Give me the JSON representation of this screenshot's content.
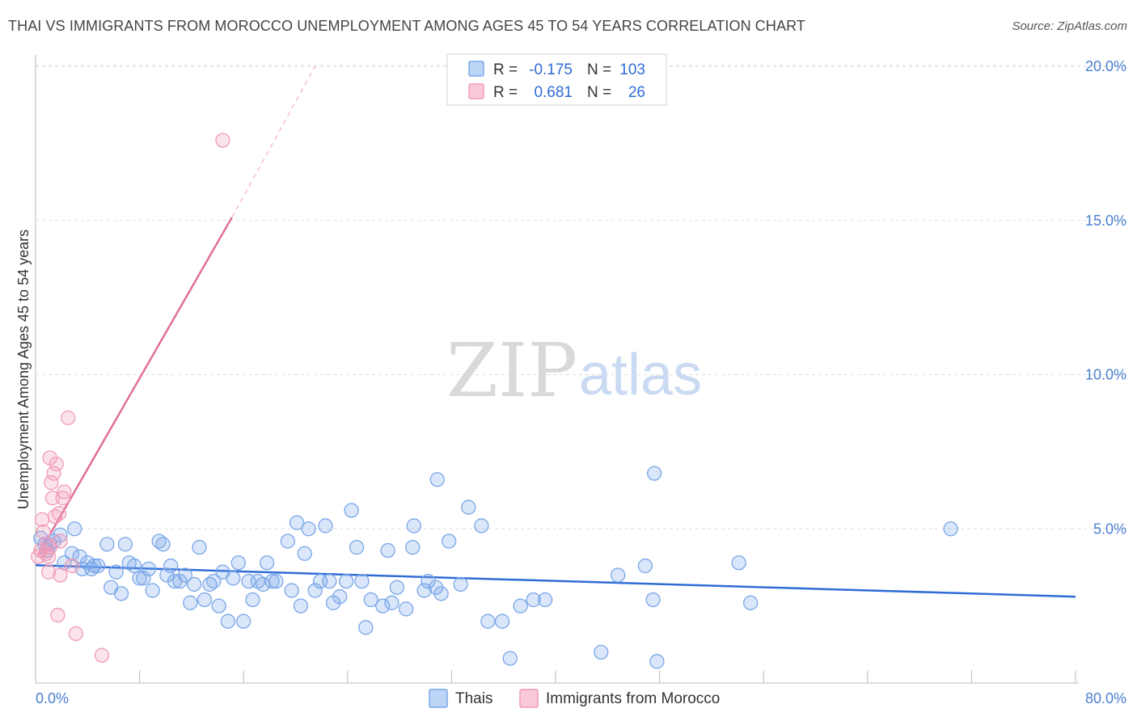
{
  "header": {
    "title": "THAI VS IMMIGRANTS FROM MOROCCO UNEMPLOYMENT AMONG AGES 45 TO 54 YEARS CORRELATION CHART",
    "source": "Source: ZipAtlas.com"
  },
  "watermark": {
    "zip": "ZIP",
    "atlas": "atlas"
  },
  "legend": {
    "r_label": "R =",
    "n_label": "N =",
    "rows": [
      {
        "series": "Thais",
        "r": "-0.175",
        "n": "103",
        "color": "#7aa7e8"
      },
      {
        "series": "Immigrants from Morocco",
        "r": "0.681",
        "n": "26",
        "color": "#f19ab8"
      }
    ]
  },
  "chart_data": {
    "type": "scatter",
    "title": "THAI VS IMMIGRANTS FROM MOROCCO UNEMPLOYMENT AMONG AGES 45 TO 54 YEARS CORRELATION CHART",
    "xlabel": "",
    "ylabel": "Unemployment Among Ages 45 to 54 years",
    "xlim": [
      0,
      80
    ],
    "ylim": [
      0,
      20.5
    ],
    "x_tick_labels": [
      "0.0%",
      "80.0%"
    ],
    "y_ticks": [
      5,
      10,
      15,
      20
    ],
    "y_tick_labels": [
      "5.0%",
      "10.0%",
      "15.0%",
      "20.0%"
    ],
    "grid": true,
    "series": [
      {
        "name": "Thais",
        "color": "#7aa7e8",
        "trend": {
          "x": [
            0,
            80
          ],
          "y": [
            3.82,
            2.8
          ],
          "style": "solid",
          "color": "#2f6cd6"
        },
        "points": [
          [
            0.4,
            4.7
          ],
          [
            0.7,
            4.5
          ],
          [
            0.9,
            4.3
          ],
          [
            1.1,
            4.5
          ],
          [
            1.4,
            4.6
          ],
          [
            1.9,
            4.8
          ],
          [
            2.2,
            3.9
          ],
          [
            2.8,
            4.2
          ],
          [
            3.0,
            5.0
          ],
          [
            3.4,
            4.1
          ],
          [
            3.6,
            3.7
          ],
          [
            4.0,
            3.9
          ],
          [
            4.3,
            3.7
          ],
          [
            4.5,
            3.8
          ],
          [
            4.8,
            3.8
          ],
          [
            5.5,
            4.5
          ],
          [
            5.8,
            3.1
          ],
          [
            6.2,
            3.6
          ],
          [
            6.6,
            2.9
          ],
          [
            6.9,
            4.5
          ],
          [
            7.2,
            3.9
          ],
          [
            7.6,
            3.8
          ],
          [
            8.0,
            3.4
          ],
          [
            8.3,
            3.4
          ],
          [
            8.7,
            3.7
          ],
          [
            9.0,
            3.0
          ],
          [
            9.5,
            4.6
          ],
          [
            9.8,
            4.5
          ],
          [
            10.1,
            3.5
          ],
          [
            10.4,
            3.8
          ],
          [
            10.7,
            3.3
          ],
          [
            11.1,
            3.3
          ],
          [
            11.5,
            3.5
          ],
          [
            11.9,
            2.6
          ],
          [
            12.2,
            3.2
          ],
          [
            12.6,
            4.4
          ],
          [
            13.0,
            2.7
          ],
          [
            13.4,
            3.2
          ],
          [
            13.7,
            3.3
          ],
          [
            14.1,
            2.5
          ],
          [
            14.4,
            3.6
          ],
          [
            14.8,
            2.0
          ],
          [
            15.2,
            3.4
          ],
          [
            15.6,
            3.9
          ],
          [
            16.0,
            2.0
          ],
          [
            16.4,
            3.3
          ],
          [
            16.7,
            2.7
          ],
          [
            17.1,
            3.3
          ],
          [
            17.5,
            3.2
          ],
          [
            17.8,
            3.9
          ],
          [
            18.2,
            3.3
          ],
          [
            18.5,
            3.3
          ],
          [
            19.4,
            4.6
          ],
          [
            19.7,
            3.0
          ],
          [
            20.1,
            5.2
          ],
          [
            20.4,
            2.5
          ],
          [
            20.7,
            4.2
          ],
          [
            21.0,
            5.0
          ],
          [
            21.5,
            3.0
          ],
          [
            21.9,
            3.3
          ],
          [
            22.3,
            5.1
          ],
          [
            22.6,
            3.3
          ],
          [
            22.9,
            2.6
          ],
          [
            23.4,
            2.8
          ],
          [
            23.9,
            3.3
          ],
          [
            24.3,
            5.6
          ],
          [
            24.7,
            4.4
          ],
          [
            25.1,
            3.3
          ],
          [
            25.4,
            1.8
          ],
          [
            25.8,
            2.7
          ],
          [
            26.7,
            2.5
          ],
          [
            27.1,
            4.3
          ],
          [
            27.4,
            2.6
          ],
          [
            27.8,
            3.1
          ],
          [
            28.5,
            2.4
          ],
          [
            29.0,
            4.4
          ],
          [
            29.1,
            5.1
          ],
          [
            29.9,
            3.0
          ],
          [
            30.2,
            3.3
          ],
          [
            30.8,
            3.1
          ],
          [
            30.9,
            6.6
          ],
          [
            31.2,
            2.9
          ],
          [
            31.8,
            4.6
          ],
          [
            32.7,
            3.2
          ],
          [
            33.3,
            5.7
          ],
          [
            34.3,
            5.1
          ],
          [
            34.8,
            2.0
          ],
          [
            35.9,
            2.0
          ],
          [
            36.5,
            0.8
          ],
          [
            37.3,
            2.5
          ],
          [
            38.3,
            2.7
          ],
          [
            39.2,
            2.7
          ],
          [
            43.5,
            1.0
          ],
          [
            44.8,
            3.5
          ],
          [
            46.9,
            3.8
          ],
          [
            47.5,
            2.7
          ],
          [
            47.6,
            6.8
          ],
          [
            47.8,
            0.7
          ],
          [
            54.1,
            3.9
          ],
          [
            55.0,
            2.6
          ],
          [
            70.4,
            5.0
          ]
        ]
      },
      {
        "name": "Immigrants from Morocco",
        "color": "#f19ab8",
        "trend": {
          "x": [
            0.2,
            15.1
          ],
          "y": [
            4.15,
            15.1
          ],
          "dashed_extension": {
            "x": [
              15.1,
              21.5
            ],
            "y": [
              15.1,
              20.0
            ]
          },
          "style": "solid",
          "color": "#e0709a"
        },
        "points": [
          [
            0.2,
            4.1
          ],
          [
            0.4,
            4.3
          ],
          [
            0.5,
            5.3
          ],
          [
            0.6,
            4.9
          ],
          [
            0.8,
            4.2
          ],
          [
            0.9,
            4.5
          ],
          [
            1.0,
            4.1
          ],
          [
            1.0,
            3.6
          ],
          [
            1.1,
            4.4
          ],
          [
            1.1,
            7.3
          ],
          [
            1.2,
            6.5
          ],
          [
            1.3,
            6.0
          ],
          [
            1.4,
            6.8
          ],
          [
            1.5,
            5.4
          ],
          [
            1.6,
            7.1
          ],
          [
            1.7,
            2.2
          ],
          [
            1.8,
            5.5
          ],
          [
            1.9,
            4.6
          ],
          [
            1.9,
            3.5
          ],
          [
            2.1,
            6.0
          ],
          [
            2.2,
            6.2
          ],
          [
            2.5,
            8.6
          ],
          [
            2.8,
            3.8
          ],
          [
            3.1,
            1.6
          ],
          [
            5.1,
            0.9
          ],
          [
            14.4,
            17.6
          ]
        ]
      }
    ],
    "legend_position": "top-center"
  },
  "bottom_legend": [
    {
      "label": "Thais",
      "color": "#7aa7e8"
    },
    {
      "label": "Immigrants from Morocco",
      "color": "#f19ab8"
    }
  ]
}
